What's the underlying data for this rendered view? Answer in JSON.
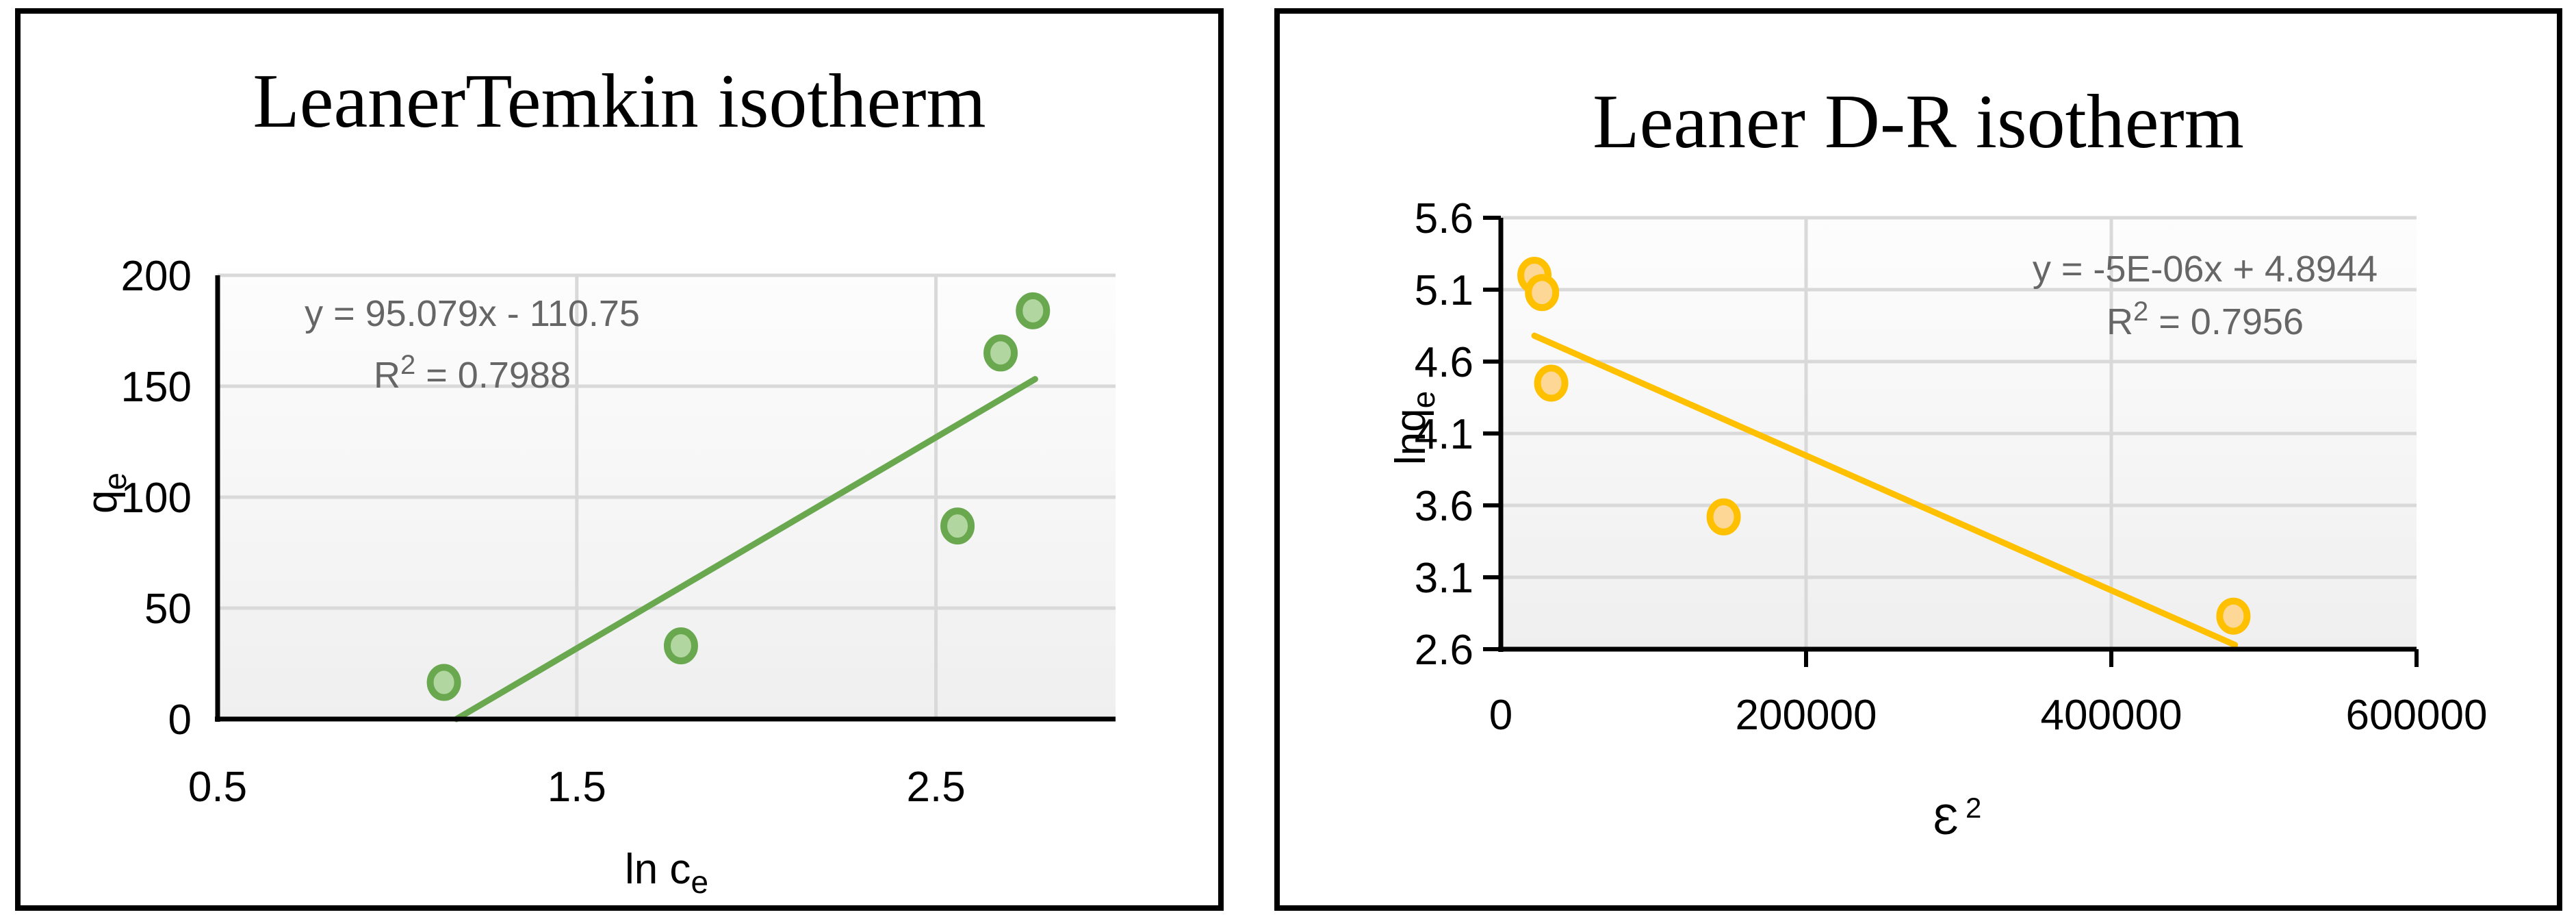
{
  "figure": {
    "background": "#ffffff",
    "panel_border_color": "#000000",
    "gridline_color": "#d9d9d9",
    "axis_color": "#000000",
    "equation_text_color": "#666666"
  },
  "chart_data": [
    {
      "type": "scatter",
      "title": "LeanerTemkin isotherm",
      "xlabel": {
        "base": "ln c",
        "sub": "e"
      },
      "ylabel": {
        "base": "q",
        "sub": "e"
      },
      "xlim": [
        0.5,
        3.0
      ],
      "ylim": [
        0,
        200
      ],
      "x_ticks": [
        {
          "value": 0.5,
          "label": "0.5"
        },
        {
          "value": 1.5,
          "label": "1.5"
        },
        {
          "value": 2.5,
          "label": "2.5"
        }
      ],
      "y_ticks": [
        {
          "value": 0,
          "label": "0"
        },
        {
          "value": 50,
          "label": "50"
        },
        {
          "value": 100,
          "label": "100"
        },
        {
          "value": 150,
          "label": "150"
        },
        {
          "value": 200,
          "label": "200"
        }
      ],
      "x_gridlines": [
        1.5,
        2.5
      ],
      "y_gridlines": [
        50,
        100,
        150,
        200
      ],
      "axis_ticks_visible": false,
      "grid_on": true,
      "legend": null,
      "points": [
        [
          1.13,
          16.5
        ],
        [
          1.79,
          33
        ],
        [
          2.56,
          87
        ],
        [
          2.68,
          165
        ],
        [
          2.77,
          184
        ]
      ],
      "marker_fill": "#b2d6a0",
      "marker_stroke": "#69a84f",
      "trend_color": "#69a84f",
      "trendline": {
        "slope": 95.079,
        "intercept": -110.75,
        "start": [
          1.165,
          0
        ],
        "end": [
          2.776,
          153.2
        ],
        "equation": "y = 95.079x - 110.75",
        "r2_base": "R",
        "r2_sup": "2",
        "r2_rest": " = 0.7988"
      }
    },
    {
      "type": "scatter",
      "title": "Leaner D-R isotherm",
      "xlabel": {
        "base": "Ɛ",
        "sup": "2"
      },
      "ylabel": {
        "base": "lnq",
        "sub": "e"
      },
      "xlim": [
        0,
        600000
      ],
      "ylim": [
        2.6,
        5.6
      ],
      "x_ticks": [
        {
          "value": 0,
          "label": "0"
        },
        {
          "value": 200000,
          "label": "200000"
        },
        {
          "value": 400000,
          "label": "400000"
        },
        {
          "value": 600000,
          "label": "600000"
        }
      ],
      "y_ticks": [
        {
          "value": 2.6,
          "label": "2.6"
        },
        {
          "value": 3.1,
          "label": "3.1"
        },
        {
          "value": 3.6,
          "label": "3.6"
        },
        {
          "value": 4.1,
          "label": "4.1"
        },
        {
          "value": 4.6,
          "label": "4.6"
        },
        {
          "value": 5.1,
          "label": "5.1"
        },
        {
          "value": 5.6,
          "label": "5.6"
        }
      ],
      "x_gridlines": [
        200000,
        400000
      ],
      "y_gridlines": [
        3.1,
        3.6,
        4.1,
        4.6,
        5.1,
        5.6
      ],
      "axis_ticks_visible": true,
      "grid_on": true,
      "legend": null,
      "points": [
        [
          22000,
          5.2
        ],
        [
          27000,
          5.08
        ],
        [
          33000,
          4.45
        ],
        [
          146000,
          3.52
        ],
        [
          480000,
          2.83
        ]
      ],
      "marker_fill": "#fdd795",
      "marker_stroke": "#ffc000",
      "trend_color": "#ffc000",
      "trendline": {
        "slope": -5e-06,
        "intercept": 4.8944,
        "start": [
          22000,
          4.78
        ],
        "end": [
          481000,
          2.63
        ],
        "equation": "y = -5E-06x + 4.8944",
        "r2_base": "R",
        "r2_sup": "2",
        "r2_rest": " = 0.7956"
      }
    }
  ]
}
